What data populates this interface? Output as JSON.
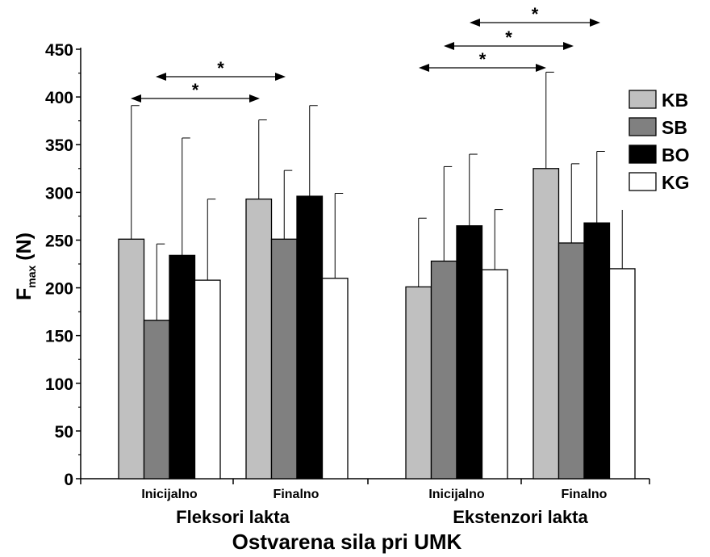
{
  "chart_data": {
    "type": "bar",
    "title": "",
    "ylabel_main": "F",
    "ylabel_sub": "max",
    "ylabel_unit": "(N)",
    "xlabel": "Ostvarena sila pri UMK",
    "ylim": [
      0,
      450
    ],
    "yticks": [
      0,
      50,
      100,
      150,
      200,
      250,
      300,
      350,
      400,
      450
    ],
    "groups": [
      {
        "label": "Fleksori lakta",
        "subgroups": [
          "Inicijalno",
          "Finalno"
        ]
      },
      {
        "label": "Ekstenzori lakta",
        "subgroups": [
          "Inicijalno",
          "Finalno"
        ]
      }
    ],
    "categories": [
      "Fleksori lakta – Inicijalno",
      "Fleksori lakta – Finalno",
      "Ekstenzori lakta – Inicijalno",
      "Ekstenzori lakta – Finalno"
    ],
    "series": [
      {
        "name": "KB",
        "color": "#c0c0c0",
        "values": [
          251,
          293,
          201,
          325
        ],
        "error_upper": [
          391,
          376,
          273,
          426
        ]
      },
      {
        "name": "SB",
        "color": "#808080",
        "values": [
          166,
          251,
          228,
          247
        ],
        "error_upper": [
          246,
          323,
          327,
          330
        ]
      },
      {
        "name": "BO",
        "color": "#000000",
        "values": [
          234,
          296,
          265,
          268
        ],
        "error_upper": [
          357,
          391,
          340,
          343
        ]
      },
      {
        "name": "KG",
        "color": "#ffffff",
        "values": [
          208,
          210,
          219,
          220
        ],
        "error_upper": [
          293,
          299,
          282,
          284
        ]
      }
    ],
    "significance": [
      {
        "label": "*",
        "from": "Fleksori lakta – Inicijalno: KB",
        "to": "Fleksori lakta – Finalno: KB"
      },
      {
        "label": "*",
        "from": "Fleksori lakta – Inicijalno: BO",
        "to": "Fleksori lakta – Finalno: BO"
      },
      {
        "label": "*",
        "from": "Ekstenzori lakta – Inicijalno: KB",
        "to": "Ekstenzori lakta – Finalno: KB"
      },
      {
        "label": "*",
        "from": "Ekstenzori lakta – Inicijalno: BO",
        "to": "Ekstenzori lakta – Finalno: SB"
      },
      {
        "label": "*",
        "from": "Ekstenzori lakta – Finalno: KB",
        "to": "Ekstenzori lakta – Finalno: BO"
      }
    ],
    "legend_position": "right",
    "grid": false
  }
}
